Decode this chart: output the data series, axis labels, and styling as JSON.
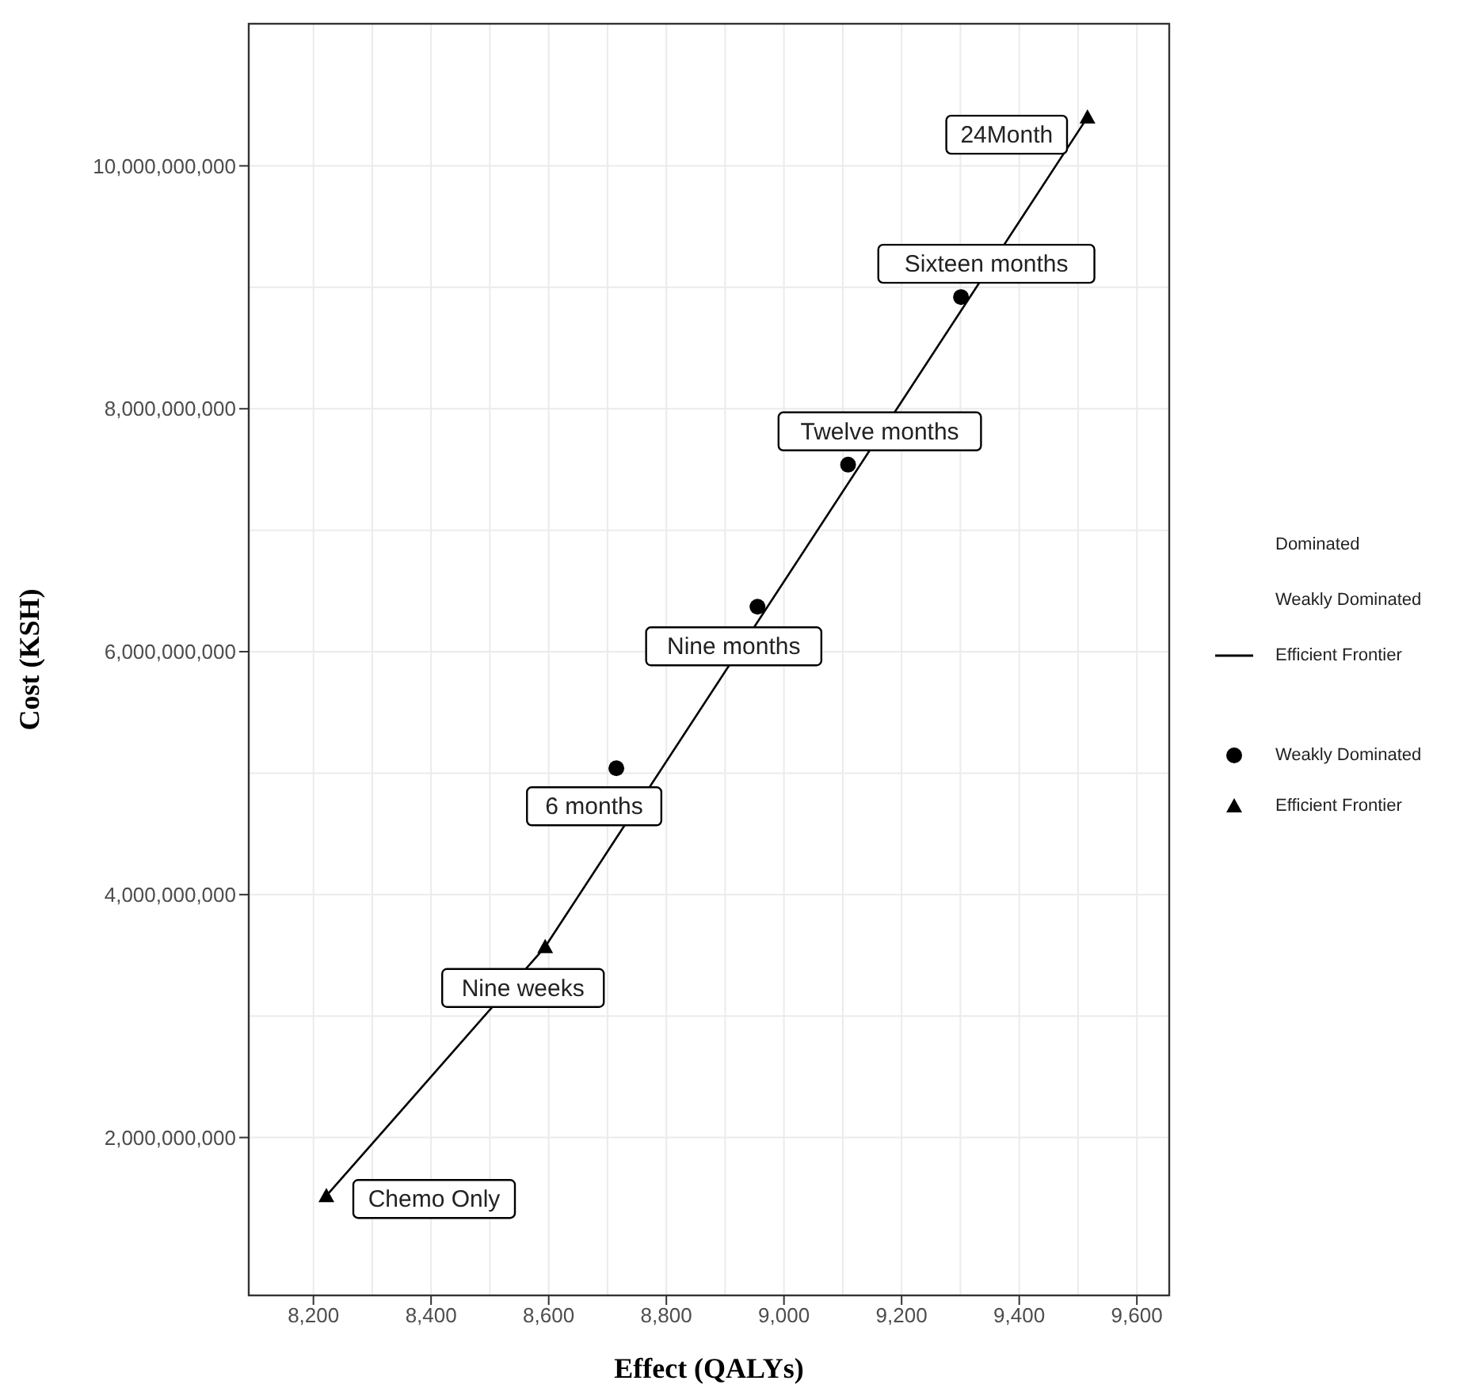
{
  "chart_data": {
    "type": "scatter",
    "xlabel": "Effect (QALYs)",
    "ylabel": "Cost (KSH)",
    "xlim": [
      8090,
      9655
    ],
    "xticks": [
      {
        "value": 8200,
        "label": "8,200"
      },
      {
        "value": 8400,
        "label": "8,400"
      },
      {
        "value": 8600,
        "label": "8,600"
      },
      {
        "value": 8800,
        "label": "8,800"
      },
      {
        "value": 9000,
        "label": "9,000"
      },
      {
        "value": 9200,
        "label": "9,200"
      },
      {
        "value": 9400,
        "label": "9,400"
      },
      {
        "value": 9600,
        "label": "9,600"
      }
    ],
    "ylim": [
      700000000,
      11170000000
    ],
    "yticks": [
      {
        "value": 2000000000,
        "label": "2,000,000,000"
      },
      {
        "value": 4000000000,
        "label": "4,000,000,000"
      },
      {
        "value": 6000000000,
        "label": "6,000,000,000"
      },
      {
        "value": 8000000000,
        "label": "8,000,000,000"
      },
      {
        "value": 10000000000,
        "label": "10,000,000,000"
      }
    ],
    "grid": true,
    "legend": "right",
    "series": [
      {
        "name": "Dominated",
        "type": "line"
      },
      {
        "name": "Weakly Dominated",
        "type": "line"
      },
      {
        "name": "Efficient Frontier",
        "type": "line",
        "color": "#000000",
        "line_style": "solid",
        "marker": "none",
        "x": [
          8222,
          8594,
          9516
        ],
        "values": [
          1520000000,
          3570000000,
          10400000000
        ]
      },
      {
        "name": "Weakly Dominated",
        "color": "#000000",
        "marker": "circle",
        "x": [
          8715,
          8955,
          9109,
          9301
        ],
        "values": [
          5040000000,
          6370000000,
          7540000000,
          8920000000
        ]
      },
      {
        "name": "Efficient Frontier",
        "color": "#000000",
        "marker": "triangle",
        "x": [
          8222,
          8594,
          9516
        ],
        "values": [
          1520000000,
          3570000000,
          10400000000
        ]
      }
    ],
    "annotations": [
      {
        "text": "Chemo Only",
        "x": 8222,
        "y": 1520000000
      },
      {
        "text": "Nine weeks",
        "x": 8594,
        "y": 3570000000
      },
      {
        "text": "6 months",
        "x": 8715,
        "y": 5040000000
      },
      {
        "text": "Nine months",
        "x": 8955,
        "y": 6370000000
      },
      {
        "text": "Twelve months",
        "x": 9109,
        "y": 7540000000
      },
      {
        "text": "Sixteen months",
        "x": 9301,
        "y": 8920000000
      },
      {
        "text": "24Month",
        "x": 9516,
        "y": 10400000000
      }
    ]
  }
}
